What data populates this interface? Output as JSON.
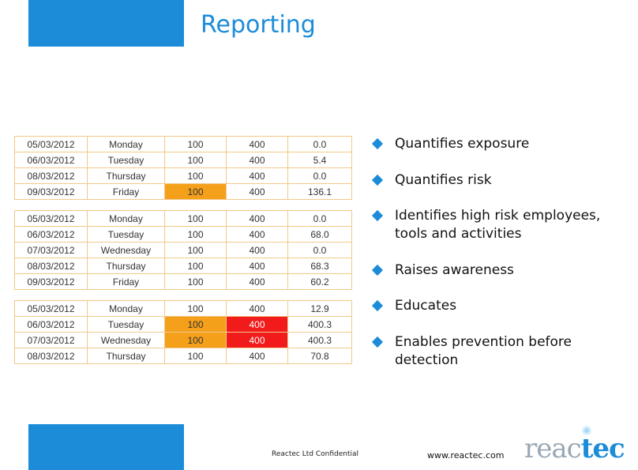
{
  "header": {
    "title": "Reporting"
  },
  "tables": [
    {
      "rows": [
        [
          "05/03/2012",
          "Monday",
          "100",
          "400",
          "0.0"
        ],
        [
          "06/03/2012",
          "Tuesday",
          "100",
          "400",
          "5.4"
        ],
        [
          "08/03/2012",
          "Thursday",
          "100",
          "400",
          "0.0"
        ],
        [
          "09/03/2012",
          "Friday",
          "100",
          "400",
          "136.1"
        ]
      ]
    },
    {
      "rows": [
        [
          "05/03/2012",
          "Monday",
          "100",
          "400",
          "0.0"
        ],
        [
          "06/03/2012",
          "Tuesday",
          "100",
          "400",
          "68.0"
        ],
        [
          "07/03/2012",
          "Wednesday",
          "100",
          "400",
          "0.0"
        ],
        [
          "08/03/2012",
          "Thursday",
          "100",
          "400",
          "68.3"
        ],
        [
          "09/03/2012",
          "Friday",
          "100",
          "400",
          "60.2"
        ]
      ]
    },
    {
      "rows": [
        [
          "05/03/2012",
          "Monday",
          "100",
          "400",
          "12.9"
        ],
        [
          "06/03/2012",
          "Tuesday",
          "100",
          "400",
          "400.3"
        ],
        [
          "07/03/2012",
          "Wednesday",
          "100",
          "400",
          "400.3"
        ],
        [
          "08/03/2012",
          "Thursday",
          "100",
          "400",
          "70.8"
        ]
      ]
    }
  ],
  "highlight_colors": {
    "orange": "#f4a01b",
    "red": "#f21b1b",
    "accent": "#1c8cd9"
  },
  "bullets": [
    "Quantifies exposure",
    "Quantifies risk",
    "Identifies high risk employees, tools and activities",
    "Raises awareness",
    "Educates",
    "Enables prevention before detection"
  ],
  "footer": {
    "confidential": "Reactec Ltd Confidential",
    "url": "www.reactec.com",
    "logo_part1": "reac",
    "logo_part2": "tec"
  }
}
